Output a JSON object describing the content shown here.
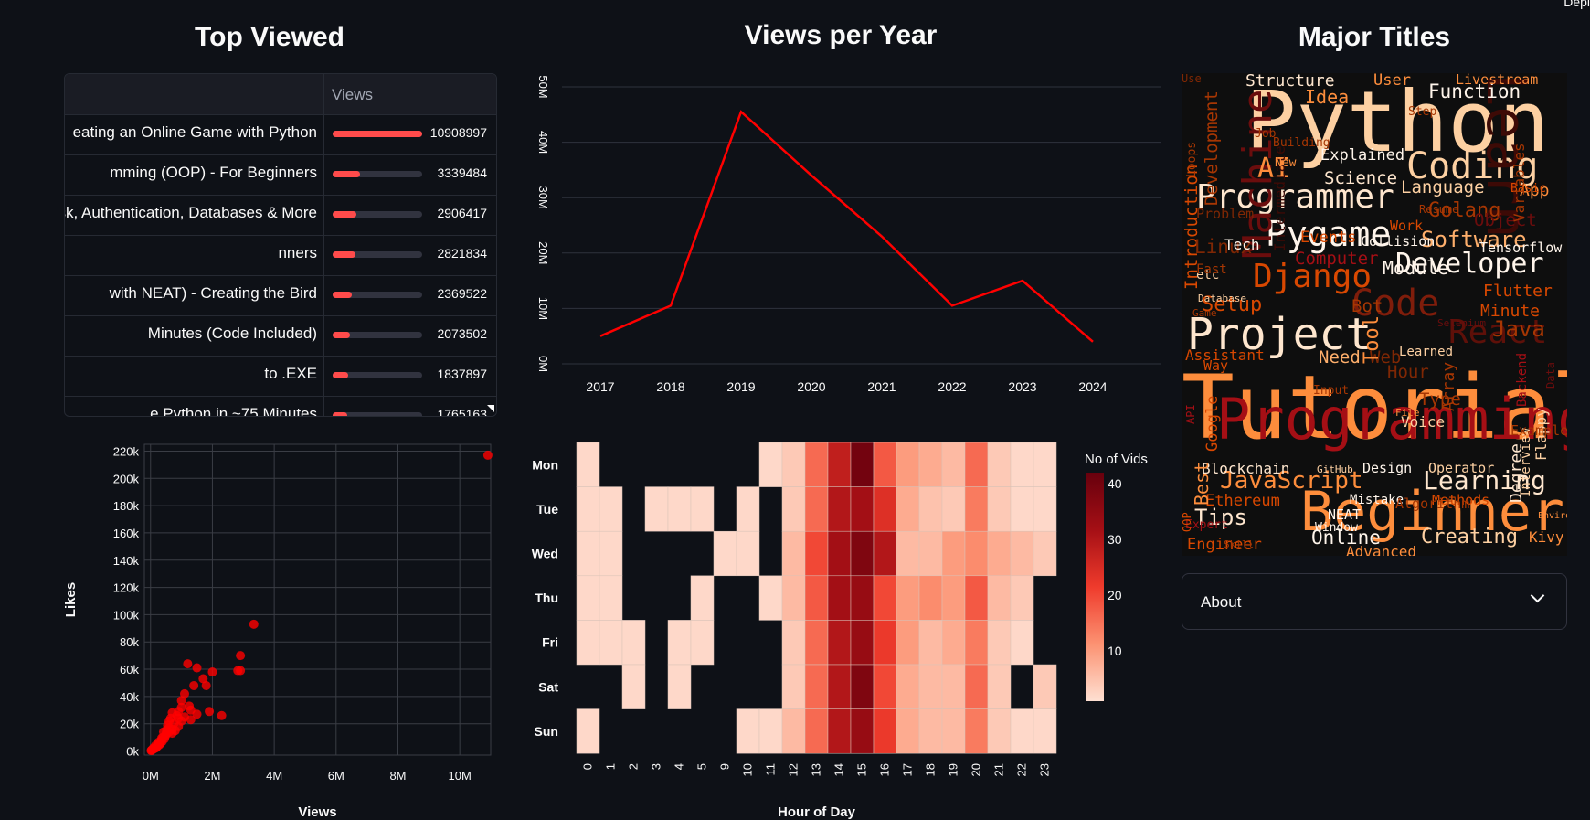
{
  "header": {
    "deploy_label": "Depl"
  },
  "top_viewed": {
    "title": "Top Viewed",
    "col_views": "Views",
    "max": 10908997,
    "rows": [
      {
        "title": "eating an Online Game with Python",
        "views": 10908997
      },
      {
        "title": "mming (OOP) - For Beginners",
        "views": 3339484
      },
      {
        "title": "ask, Authentication, Databases & More",
        "views": 2906417
      },
      {
        "title": "nners",
        "views": 2821834
      },
      {
        "title": "with NEAT) - Creating the Bird",
        "views": 2369522
      },
      {
        "title": "Minutes (Code Included)",
        "views": 2073502
      },
      {
        "title": "to .EXE",
        "views": 1837897
      },
      {
        "title": "e Python in ~75 Minutes",
        "views": 1765163
      }
    ]
  },
  "views_per_year": {
    "title": "Views per Year",
    "chart_data": {
      "type": "line",
      "x": [
        2017,
        2018,
        2019,
        2020,
        2021,
        2022,
        2023,
        2024
      ],
      "series": [
        {
          "values": [
            5000000,
            10500000,
            45500000,
            34000000,
            23000000,
            10500000,
            15000000,
            4000000
          ],
          "color": "#ff0000"
        }
      ],
      "ylim": [
        0,
        50000000
      ],
      "yticks": [
        "0M",
        "10M",
        "20M",
        "30M",
        "40M",
        "50M"
      ],
      "grid": true
    }
  },
  "major_titles": {
    "title": "Major Titles",
    "words": [
      {
        "text": "Python",
        "color": "#fdd0a2"
      },
      {
        "text": "Tutorial",
        "color": "#fd8d3c"
      },
      {
        "text": "Programming",
        "color": "#a50f15"
      },
      {
        "text": "Beginner",
        "color": "#fd8d3c"
      },
      {
        "text": "Project",
        "color": "#fee6ce"
      },
      {
        "text": "Coding",
        "color": "#fdd0a2"
      },
      {
        "text": "Pygame",
        "color": "#fff5eb"
      },
      {
        "text": "Programmer",
        "color": "#fee6ce"
      },
      {
        "text": "Django",
        "color": "#d94801"
      },
      {
        "text": "Developer",
        "color": "#fff5eb"
      },
      {
        "text": "Software",
        "color": "#fdae6b"
      },
      {
        "text": "JavaScript",
        "color": "#fd8d3c"
      },
      {
        "text": "Learning",
        "color": "#fee6ce"
      },
      {
        "text": "Creating",
        "color": "#fdd0a2"
      },
      {
        "text": "Online",
        "color": "#fff5eb"
      },
      {
        "text": "Tips",
        "color": "#fee6ce"
      },
      {
        "text": "Learn",
        "color": "#3d0a06"
      },
      {
        "text": "Machine",
        "color": "#6b0d0d"
      },
      {
        "text": "Code",
        "color": "#7f1d0b"
      },
      {
        "text": "React",
        "color": "#5e1009"
      },
      {
        "text": "Function",
        "color": "#fff5eb"
      },
      {
        "text": "Language",
        "color": "#fdd0a2"
      },
      {
        "text": "Science",
        "color": "#fee6ce"
      },
      {
        "text": "Explained",
        "color": "#fff5eb"
      },
      {
        "text": "AI",
        "color": "#fd8d3c"
      },
      {
        "text": "Idea",
        "color": "#fd8d3c"
      },
      {
        "text": "Introduction",
        "color": "#d94801"
      },
      {
        "text": "Development",
        "color": "#a63603"
      },
      {
        "text": "Linux",
        "color": "#7f2704"
      },
      {
        "text": "Computer",
        "color": "#a50f15"
      },
      {
        "text": "Golang",
        "color": "#a63603"
      },
      {
        "text": "Setup",
        "color": "#d94801"
      },
      {
        "text": "Need",
        "color": "#fdae6b"
      },
      {
        "text": "Web",
        "color": "#7f2704"
      },
      {
        "text": "Flutter",
        "color": "#d94801"
      },
      {
        "text": "Minute",
        "color": "#d94801"
      },
      {
        "text": "Java",
        "color": "#a63603"
      },
      {
        "text": "Object",
        "color": "#6b0d0d"
      },
      {
        "text": "Tensorflow",
        "color": "#fff5eb"
      },
      {
        "text": "App",
        "color": "#fd8d3c"
      },
      {
        "text": "Basic",
        "color": "#d94801"
      },
      {
        "text": "Livestream",
        "color": "#fd8d3c"
      },
      {
        "text": "User",
        "color": "#fd8d3c"
      },
      {
        "text": "Tech",
        "color": "#fff5eb"
      },
      {
        "text": "Blockchain",
        "color": "#fee6ce"
      },
      {
        "text": "Design",
        "color": "#fff5eb"
      },
      {
        "text": "Operator",
        "color": "#fdd0a2"
      },
      {
        "text": "Ethereum",
        "color": "#d94801"
      },
      {
        "text": "Methods",
        "color": "#d94801"
      },
      {
        "text": "Mistake",
        "color": "#fff5eb"
      },
      {
        "text": "NEAT",
        "color": "#fff5eb"
      },
      {
        "text": "Window",
        "color": "#fff5eb"
      },
      {
        "text": "Engineer",
        "color": "#d94801"
      },
      {
        "text": "Advanced",
        "color": "#fd8d3c"
      },
      {
        "text": "Kivy",
        "color": "#fd8d3c"
      },
      {
        "text": "Best",
        "color": "#fd8d3c"
      },
      {
        "text": "Type",
        "color": "#a63603"
      },
      {
        "text": "Voice",
        "color": "#fdd0a2"
      },
      {
        "text": "Assistant",
        "color": "#d94801"
      },
      {
        "text": "Learned",
        "color": "#fdd0a2"
      },
      {
        "text": "Hour",
        "color": "#7f2704"
      },
      {
        "text": "Bot",
        "color": "#a63603"
      },
      {
        "text": "Way",
        "color": "#d94801"
      },
      {
        "text": "Input",
        "color": "#a63603"
      },
      {
        "text": "Work",
        "color": "#d94801"
      },
      {
        "text": "Resume",
        "color": "#a63603"
      },
      {
        "text": "Collision",
        "color": "#fff5eb"
      },
      {
        "text": "Events",
        "color": "#d94801"
      },
      {
        "text": "Problem",
        "color": "#7f2704"
      },
      {
        "text": "Loops",
        "color": "#a63603"
      },
      {
        "text": "Structure",
        "color": "#fee6ce"
      },
      {
        "text": "Intermediate",
        "color": "#3d0a06"
      },
      {
        "text": "Variables",
        "color": "#a63603"
      },
      {
        "text": "Building",
        "color": "#a63603"
      },
      {
        "text": "New",
        "color": "#fd8d3c"
      },
      {
        "text": "Job",
        "color": "#a63603"
      },
      {
        "text": "Step",
        "color": "#a63603"
      },
      {
        "text": "Tool",
        "color": "#fd8d3c"
      },
      {
        "text": "Game",
        "color": "#a63603"
      },
      {
        "text": "Database",
        "color": "#fdd0a2"
      },
      {
        "text": "Module",
        "color": "#fff5eb"
      },
      {
        "text": "Data",
        "color": "#6b0d0d"
      },
      {
        "text": "Backend",
        "color": "#a50f15"
      },
      {
        "text": "Flappy",
        "color": "#fdd0a2"
      },
      {
        "text": "Interview",
        "color": "#fdd0a2"
      },
      {
        "text": "Degree",
        "color": "#fee6ce"
      },
      {
        "text": "Array",
        "color": "#a63603"
      },
      {
        "text": "API",
        "color": "#a50f15"
      },
      {
        "text": "Google",
        "color": "#d94801"
      },
      {
        "text": "Algorithm",
        "color": "#a63603"
      },
      {
        "text": "File",
        "color": "#fd8d3c"
      },
      {
        "text": "GitHub",
        "color": "#fdd0a2"
      },
      {
        "text": "Expert",
        "color": "#a50f15"
      },
      {
        "text": "Skill",
        "color": "#a63603"
      },
      {
        "text": "Environment",
        "color": "#fd8d3c"
      },
      {
        "text": "OOP",
        "color": "#d94801"
      },
      {
        "text": "Example",
        "color": "#a63603"
      },
      {
        "text": "Selenium",
        "color": "#6b0d0d"
      },
      {
        "text": "etc",
        "color": "#fdd0a2"
      },
      {
        "text": "Fast",
        "color": "#a63603"
      },
      {
        "text": "Use",
        "color": "#7f2704"
      }
    ]
  },
  "scatter": {
    "chart_data": {
      "type": "scatter",
      "xlabel": "Views",
      "ylabel": "Likes",
      "xlim": [
        -200000,
        11000000
      ],
      "ylim": [
        -3000,
        225000
      ],
      "xticks": [
        "0M",
        "2M",
        "4M",
        "6M",
        "8M",
        "10M"
      ],
      "yticks": [
        "0k",
        "20k",
        "40k",
        "60k",
        "80k",
        "100k",
        "120k",
        "140k",
        "160k",
        "180k",
        "200k",
        "220k"
      ],
      "color": "#ff0000",
      "points": [
        [
          10908997,
          217000
        ],
        [
          3339484,
          93000
        ],
        [
          2906417,
          70000
        ],
        [
          2906417,
          59000
        ],
        [
          2821834,
          59000
        ],
        [
          1200000,
          64000
        ],
        [
          1500000,
          61000
        ],
        [
          2000000,
          58000
        ],
        [
          1700000,
          53000
        ],
        [
          1800000,
          48000
        ],
        [
          1400000,
          48000
        ],
        [
          1100000,
          42000
        ],
        [
          2300000,
          26000
        ],
        [
          1900000,
          29000
        ],
        [
          1500000,
          27000
        ],
        [
          1250000,
          33000
        ],
        [
          1000000,
          37000
        ],
        [
          1100000,
          25000
        ],
        [
          900000,
          29000
        ],
        [
          700000,
          28000
        ],
        [
          600000,
          22000
        ],
        [
          900000,
          18000
        ],
        [
          800000,
          15000
        ],
        [
          700000,
          13000
        ],
        [
          600000,
          17000
        ],
        [
          500000,
          12000
        ],
        [
          450000,
          9000
        ],
        [
          400000,
          10000
        ],
        [
          350000,
          8000
        ],
        [
          300000,
          6000
        ],
        [
          250000,
          5000
        ],
        [
          200000,
          3000
        ],
        [
          150000,
          2000
        ],
        [
          100000,
          1500
        ],
        [
          50000,
          800
        ],
        [
          420000,
          14000
        ],
        [
          520000,
          15500
        ],
        [
          380000,
          7000
        ],
        [
          280000,
          4500
        ],
        [
          220000,
          3500
        ],
        [
          320000,
          5500
        ],
        [
          180000,
          2500
        ],
        [
          120000,
          1800
        ],
        [
          80000,
          1200
        ],
        [
          60000,
          900
        ],
        [
          1000000,
          22000
        ],
        [
          1300000,
          30000
        ],
        [
          750000,
          20000
        ],
        [
          650000,
          24000
        ],
        [
          550000,
          19000
        ],
        [
          480000,
          11000
        ],
        [
          360000,
          9500
        ],
        [
          260000,
          6500
        ],
        [
          160000,
          4000
        ],
        [
          90000,
          2200
        ],
        [
          40000,
          700
        ],
        [
          30000,
          500
        ],
        [
          20000,
          300
        ],
        [
          900000,
          24000
        ],
        [
          1000000,
          32000
        ],
        [
          1300000,
          23000
        ],
        [
          850000,
          26000
        ],
        [
          700000,
          16000
        ],
        [
          600000,
          14000
        ],
        [
          500000,
          13000
        ]
      ]
    }
  },
  "heatmap": {
    "chart_data": {
      "type": "heatmap",
      "xlabel": "Hour of Day",
      "columns": [
        "0",
        "1",
        "2",
        "3",
        "4",
        "5",
        "9",
        "10",
        "11",
        "12",
        "13",
        "14",
        "15",
        "16",
        "17",
        "18",
        "19",
        "20",
        "21",
        "22",
        "23"
      ],
      "rows": [
        "Mon",
        "Tue",
        "Wed",
        "Thu",
        "Fri",
        "Sat",
        "Sun"
      ],
      "colorbar_title": "No of Vids",
      "colorbar_ticks": [
        10,
        20,
        30,
        40
      ],
      "vmin": 1,
      "vmax": 42,
      "values": [
        [
          2,
          0,
          0,
          0,
          0,
          0,
          0,
          0,
          2,
          4,
          16,
          28,
          40,
          18,
          10,
          8,
          6,
          16,
          4,
          2,
          2
        ],
        [
          2,
          2,
          0,
          2,
          2,
          2,
          0,
          2,
          0,
          4,
          16,
          30,
          32,
          24,
          8,
          5,
          4,
          14,
          4,
          2,
          2
        ],
        [
          2,
          2,
          0,
          0,
          0,
          0,
          2,
          2,
          0,
          6,
          20,
          32,
          38,
          30,
          6,
          6,
          10,
          12,
          8,
          6,
          4
        ],
        [
          2,
          2,
          0,
          0,
          0,
          2,
          0,
          0,
          2,
          6,
          18,
          32,
          34,
          20,
          10,
          12,
          10,
          18,
          6,
          4,
          0
        ],
        [
          2,
          2,
          2,
          0,
          2,
          2,
          0,
          0,
          0,
          4,
          16,
          30,
          34,
          22,
          10,
          6,
          8,
          14,
          4,
          2,
          0
        ],
        [
          0,
          0,
          2,
          0,
          2,
          0,
          0,
          0,
          0,
          4,
          16,
          30,
          38,
          20,
          8,
          6,
          6,
          16,
          4,
          0,
          4
        ],
        [
          2,
          0,
          0,
          0,
          0,
          0,
          0,
          2,
          2,
          6,
          16,
          30,
          34,
          22,
          8,
          6,
          6,
          14,
          4,
          2,
          2
        ]
      ]
    }
  },
  "about": {
    "label": "About"
  }
}
